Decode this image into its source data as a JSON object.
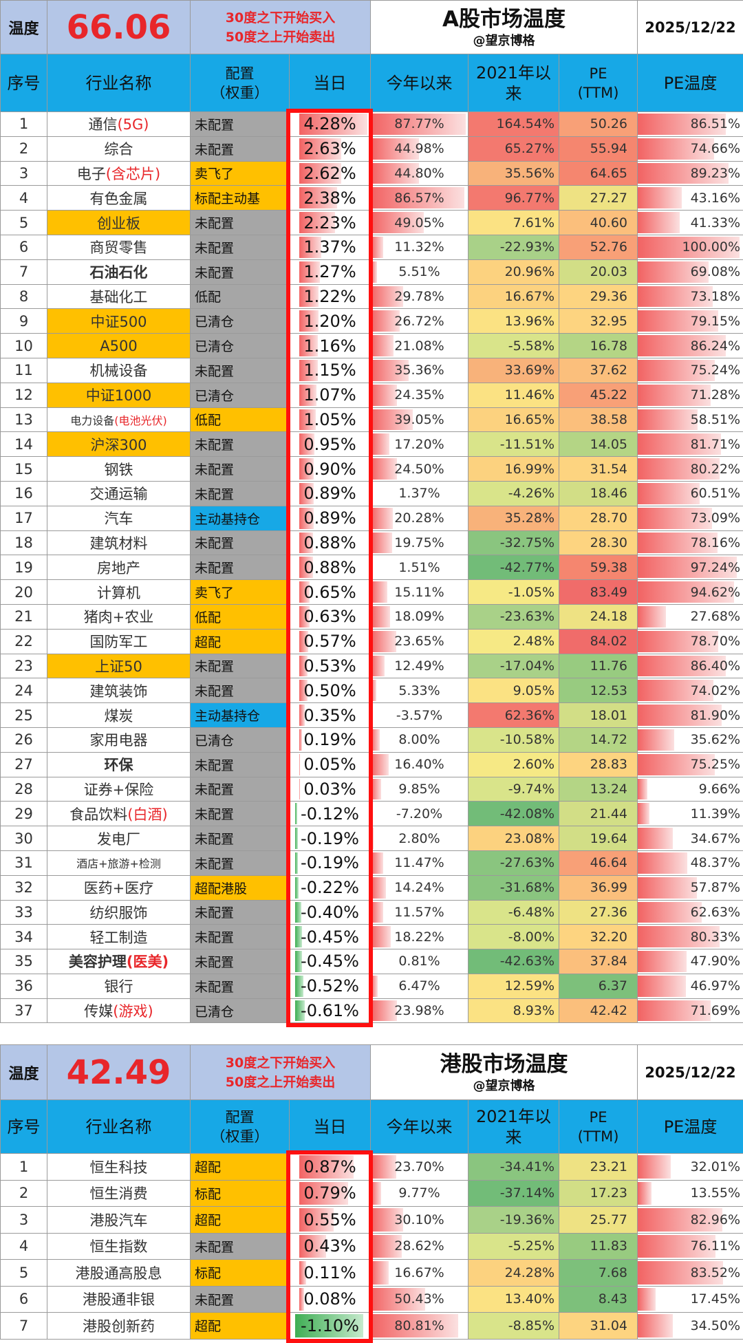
{
  "colors": {
    "title_bg": "#b4c6e7",
    "header_bg": "#17a8e6",
    "accent_red": "#e8262a",
    "orange": "#ffc000",
    "grey": "#a6a6a6",
    "blue": "#17a8e6",
    "box_red": "#ff1010"
  },
  "a_market": {
    "temp_label": "温度",
    "temp_value": "66.06",
    "rule_line1": "30度之下开始买入",
    "rule_line2": "50度之上开始卖出",
    "title": "A股市场温度",
    "subtitle": "@望京博格",
    "date": "2025/12/22",
    "headers": {
      "idx": "序号",
      "name": "行业名称",
      "alloc": "配置\n（权重）",
      "today": "当日",
      "ytd": "今年以来",
      "since2021": "2021年以来",
      "pe": "PE\n(TTM)",
      "pe_temp": "PE温度"
    },
    "rows": [
      {
        "idx": "1",
        "name": "通信",
        "name_red": "(5G)",
        "alloc": "未配置",
        "alloc_color": "grey",
        "today": "4.28%",
        "today_num": 4.28,
        "ytd": "87.77%",
        "ytd_num": 87.77,
        "r21": "164.54%",
        "r21_num": 164.54,
        "pe": "50.26",
        "pe_num": 50.26,
        "pt": "86.51%",
        "pt_num": 86.51
      },
      {
        "idx": "2",
        "name": "综合",
        "alloc": "未配置",
        "alloc_color": "grey",
        "today": "2.63%",
        "today_num": 2.63,
        "ytd": "44.98%",
        "ytd_num": 44.98,
        "r21": "65.27%",
        "r21_num": 65.27,
        "pe": "55.94",
        "pe_num": 55.94,
        "pt": "74.66%",
        "pt_num": 74.66
      },
      {
        "idx": "3",
        "name": "电子",
        "name_red": "(含芯片)",
        "alloc": "卖飞了",
        "alloc_color": "orange",
        "today": "2.62%",
        "today_num": 2.62,
        "ytd": "44.80%",
        "ytd_num": 44.8,
        "r21": "35.56%",
        "r21_num": 35.56,
        "pe": "64.65",
        "pe_num": 64.65,
        "pt": "89.23%",
        "pt_num": 89.23
      },
      {
        "idx": "4",
        "name": "有色金属",
        "alloc": "标配主动基",
        "alloc_color": "orange",
        "today": "2.38%",
        "today_num": 2.38,
        "ytd": "86.57%",
        "ytd_num": 86.57,
        "r21": "96.77%",
        "r21_num": 96.77,
        "pe": "27.27",
        "pe_num": 27.27,
        "pt": "43.16%",
        "pt_num": 43.16
      },
      {
        "idx": "5",
        "name": "创业板",
        "name_orange": true,
        "alloc": "未配置",
        "alloc_color": "grey",
        "today": "2.23%",
        "today_num": 2.23,
        "ytd": "49.05%",
        "ytd_num": 49.05,
        "r21": "7.61%",
        "r21_num": 7.61,
        "pe": "40.60",
        "pe_num": 40.6,
        "pt": "41.33%",
        "pt_num": 41.33
      },
      {
        "idx": "6",
        "name": "商贸零售",
        "alloc": "未配置",
        "alloc_color": "grey",
        "today": "1.37%",
        "today_num": 1.37,
        "ytd": "11.32%",
        "ytd_num": 11.32,
        "r21": "-22.93%",
        "r21_num": -22.93,
        "pe": "52.76",
        "pe_num": 52.76,
        "pt": "100.00%",
        "pt_num": 100.0
      },
      {
        "idx": "7",
        "name": "石油石化",
        "name_bold": true,
        "alloc": "未配置",
        "alloc_color": "grey",
        "today": "1.27%",
        "today_num": 1.27,
        "ytd": "5.51%",
        "ytd_num": 5.51,
        "r21": "20.96%",
        "r21_num": 20.96,
        "pe": "20.03",
        "pe_num": 20.03,
        "pt": "69.08%",
        "pt_num": 69.08
      },
      {
        "idx": "8",
        "name": "基础化工",
        "alloc": "低配",
        "alloc_color": "grey",
        "today": "1.22%",
        "today_num": 1.22,
        "ytd": "29.78%",
        "ytd_num": 29.78,
        "r21": "16.67%",
        "r21_num": 16.67,
        "pe": "29.36",
        "pe_num": 29.36,
        "pt": "73.18%",
        "pt_num": 73.18
      },
      {
        "idx": "9",
        "name": "中证500",
        "name_orange": true,
        "alloc": "已清仓",
        "alloc_color": "grey",
        "today": "1.20%",
        "today_num": 1.2,
        "ytd": "26.72%",
        "ytd_num": 26.72,
        "r21": "13.96%",
        "r21_num": 13.96,
        "pe": "32.95",
        "pe_num": 32.95,
        "pt": "79.15%",
        "pt_num": 79.15
      },
      {
        "idx": "10",
        "name": "A500",
        "name_orange": true,
        "alloc": "已清仓",
        "alloc_color": "grey",
        "today": "1.16%",
        "today_num": 1.16,
        "ytd": "21.08%",
        "ytd_num": 21.08,
        "r21": "-5.58%",
        "r21_num": -5.58,
        "pe": "16.78",
        "pe_num": 16.78,
        "pt": "86.24%",
        "pt_num": 86.24
      },
      {
        "idx": "11",
        "name": "机械设备",
        "alloc": "未配置",
        "alloc_color": "grey",
        "today": "1.15%",
        "today_num": 1.15,
        "ytd": "35.36%",
        "ytd_num": 35.36,
        "r21": "33.69%",
        "r21_num": 33.69,
        "pe": "37.62",
        "pe_num": 37.62,
        "pt": "75.24%",
        "pt_num": 75.24
      },
      {
        "idx": "12",
        "name": "中证1000",
        "name_orange": true,
        "alloc": "已清仓",
        "alloc_color": "grey",
        "today": "1.07%",
        "today_num": 1.07,
        "ytd": "24.35%",
        "ytd_num": 24.35,
        "r21": "11.46%",
        "r21_num": 11.46,
        "pe": "45.22",
        "pe_num": 45.22,
        "pt": "71.28%",
        "pt_num": 71.28
      },
      {
        "idx": "13",
        "name": "电力设备",
        "name_red": "(电池光伏)",
        "name_small": true,
        "alloc": "低配",
        "alloc_color": "orange",
        "today": "1.05%",
        "today_num": 1.05,
        "ytd": "39.05%",
        "ytd_num": 39.05,
        "r21": "16.65%",
        "r21_num": 16.65,
        "pe": "38.58",
        "pe_num": 38.58,
        "pt": "58.51%",
        "pt_num": 58.51
      },
      {
        "idx": "14",
        "name": "沪深300",
        "name_orange": true,
        "alloc": "未配置",
        "alloc_color": "grey",
        "today": "0.95%",
        "today_num": 0.95,
        "ytd": "17.20%",
        "ytd_num": 17.2,
        "r21": "-11.51%",
        "r21_num": -11.51,
        "pe": "14.05",
        "pe_num": 14.05,
        "pt": "81.71%",
        "pt_num": 81.71
      },
      {
        "idx": "15",
        "name": "钢铁",
        "alloc": "未配置",
        "alloc_color": "grey",
        "today": "0.90%",
        "today_num": 0.9,
        "ytd": "24.50%",
        "ytd_num": 24.5,
        "r21": "16.99%",
        "r21_num": 16.99,
        "pe": "31.54",
        "pe_num": 31.54,
        "pt": "80.22%",
        "pt_num": 80.22
      },
      {
        "idx": "16",
        "name": "交通运输",
        "alloc": "未配置",
        "alloc_color": "grey",
        "today": "0.89%",
        "today_num": 0.89,
        "ytd": "1.37%",
        "ytd_num": 1.37,
        "r21": "-4.26%",
        "r21_num": -4.26,
        "pe": "18.46",
        "pe_num": 18.46,
        "pt": "60.51%",
        "pt_num": 60.51
      },
      {
        "idx": "17",
        "name": "汽车",
        "alloc": "主动基持仓",
        "alloc_color": "blue",
        "today": "0.89%",
        "today_num": 0.89,
        "ytd": "20.28%",
        "ytd_num": 20.28,
        "r21": "35.28%",
        "r21_num": 35.28,
        "pe": "28.70",
        "pe_num": 28.7,
        "pt": "73.09%",
        "pt_num": 73.09
      },
      {
        "idx": "18",
        "name": "建筑材料",
        "alloc": "未配置",
        "alloc_color": "grey",
        "today": "0.88%",
        "today_num": 0.88,
        "ytd": "19.75%",
        "ytd_num": 19.75,
        "r21": "-32.75%",
        "r21_num": -32.75,
        "pe": "28.30",
        "pe_num": 28.3,
        "pt": "78.16%",
        "pt_num": 78.16
      },
      {
        "idx": "19",
        "name": "房地产",
        "alloc": "未配置",
        "alloc_color": "grey",
        "today": "0.88%",
        "today_num": 0.88,
        "ytd": "1.51%",
        "ytd_num": 1.51,
        "r21": "-42.77%",
        "r21_num": -42.77,
        "pe": "59.38",
        "pe_num": 59.38,
        "pt": "97.24%",
        "pt_num": 97.24
      },
      {
        "idx": "20",
        "name": "计算机",
        "alloc": "卖飞了",
        "alloc_color": "orange",
        "today": "0.65%",
        "today_num": 0.65,
        "ytd": "15.11%",
        "ytd_num": 15.11,
        "r21": "-1.05%",
        "r21_num": -1.05,
        "pe": "83.49",
        "pe_num": 83.49,
        "pt": "94.62%",
        "pt_num": 94.62
      },
      {
        "idx": "21",
        "name": "猪肉+农业",
        "alloc": "低配",
        "alloc_color": "orange",
        "today": "0.63%",
        "today_num": 0.63,
        "ytd": "18.09%",
        "ytd_num": 18.09,
        "r21": "-23.63%",
        "r21_num": -23.63,
        "pe": "24.18",
        "pe_num": 24.18,
        "pt": "27.68%",
        "pt_num": 27.68
      },
      {
        "idx": "22",
        "name": "国防军工",
        "alloc": "超配",
        "alloc_color": "orange",
        "today": "0.57%",
        "today_num": 0.57,
        "ytd": "23.65%",
        "ytd_num": 23.65,
        "r21": "2.48%",
        "r21_num": 2.48,
        "pe": "84.02",
        "pe_num": 84.02,
        "pt": "78.70%",
        "pt_num": 78.7
      },
      {
        "idx": "23",
        "name": "上证50",
        "name_orange": true,
        "alloc": "未配置",
        "alloc_color": "grey",
        "today": "0.53%",
        "today_num": 0.53,
        "ytd": "12.49%",
        "ytd_num": 12.49,
        "r21": "-17.04%",
        "r21_num": -17.04,
        "pe": "11.76",
        "pe_num": 11.76,
        "pt": "86.40%",
        "pt_num": 86.4
      },
      {
        "idx": "24",
        "name": "建筑装饰",
        "alloc": "未配置",
        "alloc_color": "grey",
        "today": "0.50%",
        "today_num": 0.5,
        "ytd": "5.33%",
        "ytd_num": 5.33,
        "r21": "9.05%",
        "r21_num": 9.05,
        "pe": "12.53",
        "pe_num": 12.53,
        "pt": "74.02%",
        "pt_num": 74.02
      },
      {
        "idx": "25",
        "name": "煤炭",
        "alloc": "主动基持仓",
        "alloc_color": "blue",
        "today": "0.35%",
        "today_num": 0.35,
        "ytd": "-3.57%",
        "ytd_num": -3.57,
        "r21": "62.36%",
        "r21_num": 62.36,
        "pe": "18.01",
        "pe_num": 18.01,
        "pt": "81.90%",
        "pt_num": 81.9
      },
      {
        "idx": "26",
        "name": "家用电器",
        "alloc": "已清仓",
        "alloc_color": "grey",
        "today": "0.19%",
        "today_num": 0.19,
        "ytd": "8.00%",
        "ytd_num": 8.0,
        "r21": "-10.58%",
        "r21_num": -10.58,
        "pe": "14.72",
        "pe_num": 14.72,
        "pt": "35.62%",
        "pt_num": 35.62
      },
      {
        "idx": "27",
        "name": "环保",
        "name_bold": true,
        "alloc": "未配置",
        "alloc_color": "grey",
        "today": "0.05%",
        "today_num": 0.05,
        "ytd": "16.40%",
        "ytd_num": 16.4,
        "r21": "2.60%",
        "r21_num": 2.6,
        "pe": "28.83",
        "pe_num": 28.83,
        "pt": "75.25%",
        "pt_num": 75.25
      },
      {
        "idx": "28",
        "name": "证券+保险",
        "alloc": "未配置",
        "alloc_color": "grey",
        "today": "0.03%",
        "today_num": 0.03,
        "ytd": "9.85%",
        "ytd_num": 9.85,
        "r21": "-9.74%",
        "r21_num": -9.74,
        "pe": "13.24",
        "pe_num": 13.24,
        "pt": "9.66%",
        "pt_num": 9.66
      },
      {
        "idx": "29",
        "name": "食品饮料",
        "name_red": "(白酒)",
        "alloc": "未配置",
        "alloc_color": "grey",
        "today": "-0.12%",
        "today_num": -0.12,
        "ytd": "-7.20%",
        "ytd_num": -7.2,
        "r21": "-42.08%",
        "r21_num": -42.08,
        "pe": "21.44",
        "pe_num": 21.44,
        "pt": "11.39%",
        "pt_num": 11.39
      },
      {
        "idx": "30",
        "name": "发电厂",
        "alloc": "未配置",
        "alloc_color": "grey",
        "today": "-0.19%",
        "today_num": -0.19,
        "ytd": "2.80%",
        "ytd_num": 2.8,
        "r21": "23.08%",
        "r21_num": 23.08,
        "pe": "19.64",
        "pe_num": 19.64,
        "pt": "34.67%",
        "pt_num": 34.67
      },
      {
        "idx": "31",
        "name": "酒店+旅游+检测",
        "name_small": true,
        "alloc": "未配置",
        "alloc_color": "grey",
        "today": "-0.19%",
        "today_num": -0.19,
        "ytd": "11.47%",
        "ytd_num": 11.47,
        "r21": "-27.63%",
        "r21_num": -27.63,
        "pe": "46.64",
        "pe_num": 46.64,
        "pt": "48.37%",
        "pt_num": 48.37
      },
      {
        "idx": "32",
        "name": "医药+医疗",
        "alloc": "超配港股",
        "alloc_color": "orange",
        "today": "-0.22%",
        "today_num": -0.22,
        "ytd": "14.24%",
        "ytd_num": 14.24,
        "r21": "-31.68%",
        "r21_num": -31.68,
        "pe": "36.99",
        "pe_num": 36.99,
        "pt": "57.87%",
        "pt_num": 57.87
      },
      {
        "idx": "33",
        "name": "纺织服饰",
        "alloc": "未配置",
        "alloc_color": "grey",
        "today": "-0.40%",
        "today_num": -0.4,
        "ytd": "11.57%",
        "ytd_num": 11.57,
        "r21": "-6.48%",
        "r21_num": -6.48,
        "pe": "27.36",
        "pe_num": 27.36,
        "pt": "62.63%",
        "pt_num": 62.63
      },
      {
        "idx": "34",
        "name": "轻工制造",
        "alloc": "未配置",
        "alloc_color": "grey",
        "today": "-0.45%",
        "today_num": -0.45,
        "ytd": "18.22%",
        "ytd_num": 18.22,
        "r21": "-8.00%",
        "r21_num": -8.0,
        "pe": "32.20",
        "pe_num": 32.2,
        "pt": "80.33%",
        "pt_num": 80.33
      },
      {
        "idx": "35",
        "name": "美容护理",
        "name_red": "(医美)",
        "name_bold": true,
        "alloc": "未配置",
        "alloc_color": "grey",
        "today": "-0.45%",
        "today_num": -0.45,
        "ytd": "0.81%",
        "ytd_num": 0.81,
        "r21": "-42.63%",
        "r21_num": -42.63,
        "pe": "37.84",
        "pe_num": 37.84,
        "pt": "47.90%",
        "pt_num": 47.9
      },
      {
        "idx": "36",
        "name": "银行",
        "alloc": "未配置",
        "alloc_color": "grey",
        "today": "-0.52%",
        "today_num": -0.52,
        "ytd": "6.47%",
        "ytd_num": 6.47,
        "r21": "12.59%",
        "r21_num": 12.59,
        "pe": "6.37",
        "pe_num": 6.37,
        "pt": "46.97%",
        "pt_num": 46.97
      },
      {
        "idx": "37",
        "name": "传媒",
        "name_red": "(游戏)",
        "alloc": "已清仓",
        "alloc_color": "grey",
        "today": "-0.61%",
        "today_num": -0.61,
        "ytd": "23.98%",
        "ytd_num": 23.98,
        "r21": "8.93%",
        "r21_num": 8.93,
        "pe": "42.42",
        "pe_num": 42.42,
        "pt": "71.69%",
        "pt_num": 71.69
      }
    ]
  },
  "hk_market": {
    "temp_label": "温度",
    "temp_value": "42.49",
    "rule_line1": "30度之下开始买入",
    "rule_line2": "50度之上开始卖出",
    "title": "港股市场温度",
    "subtitle": "@望京博格",
    "date": "2025/12/22",
    "headers": {
      "idx": "序号",
      "name": "行业名称",
      "alloc": "配置\n（权重）",
      "today": "当日",
      "ytd": "今年以来",
      "since2021": "2021年以来",
      "pe": "PE\n(TTM)",
      "pe_temp": "PE温度"
    },
    "rows": [
      {
        "idx": "1",
        "name": "恒生科技",
        "alloc": "超配",
        "alloc_color": "orange",
        "today": "0.87%",
        "today_num": 0.87,
        "ytd": "23.70%",
        "ytd_num": 23.7,
        "r21": "-34.41%",
        "r21_num": -34.41,
        "pe": "23.21",
        "pe_num": 23.21,
        "pt": "32.01%",
        "pt_num": 32.01
      },
      {
        "idx": "2",
        "name": "恒生消费",
        "alloc": "标配",
        "alloc_color": "orange",
        "today": "0.79%",
        "today_num": 0.79,
        "ytd": "9.77%",
        "ytd_num": 9.77,
        "r21": "-37.14%",
        "r21_num": -37.14,
        "pe": "17.23",
        "pe_num": 17.23,
        "pt": "13.55%",
        "pt_num": 13.55
      },
      {
        "idx": "3",
        "name": "港股汽车",
        "alloc": "超配",
        "alloc_color": "orange",
        "today": "0.55%",
        "today_num": 0.55,
        "ytd": "30.10%",
        "ytd_num": 30.1,
        "r21": "-19.36%",
        "r21_num": -19.36,
        "pe": "25.77",
        "pe_num": 25.77,
        "pt": "82.96%",
        "pt_num": 82.96
      },
      {
        "idx": "4",
        "name": "恒生指数",
        "alloc": "未配置",
        "alloc_color": "grey",
        "today": "0.43%",
        "today_num": 0.43,
        "ytd": "28.62%",
        "ytd_num": 28.62,
        "r21": "-5.25%",
        "r21_num": -5.25,
        "pe": "11.83",
        "pe_num": 11.83,
        "pt": "76.11%",
        "pt_num": 76.11
      },
      {
        "idx": "5",
        "name": "港股通高股息",
        "alloc": "标配",
        "alloc_color": "orange",
        "today": "0.11%",
        "today_num": 0.11,
        "ytd": "16.67%",
        "ytd_num": 16.67,
        "r21": "24.28%",
        "r21_num": 24.28,
        "pe": "7.68",
        "pe_num": 7.68,
        "pt": "83.52%",
        "pt_num": 83.52
      },
      {
        "idx": "6",
        "name": "港股通非银",
        "alloc": "未配置",
        "alloc_color": "grey",
        "today": "0.08%",
        "today_num": 0.08,
        "ytd": "50.43%",
        "ytd_num": 50.43,
        "r21": "13.40%",
        "r21_num": 13.4,
        "pe": "8.43",
        "pe_num": 8.43,
        "pt": "17.45%",
        "pt_num": 17.45
      },
      {
        "idx": "7",
        "name": "港股创新药",
        "alloc": "超配",
        "alloc_color": "orange",
        "today": "-1.10%",
        "today_num": -1.1,
        "ytd": "80.81%",
        "ytd_num": 80.81,
        "r21": "-8.85%",
        "r21_num": -8.85,
        "pe": "31.04",
        "pe_num": 31.04,
        "pt": "34.50%",
        "pt_num": 34.5
      }
    ]
  }
}
